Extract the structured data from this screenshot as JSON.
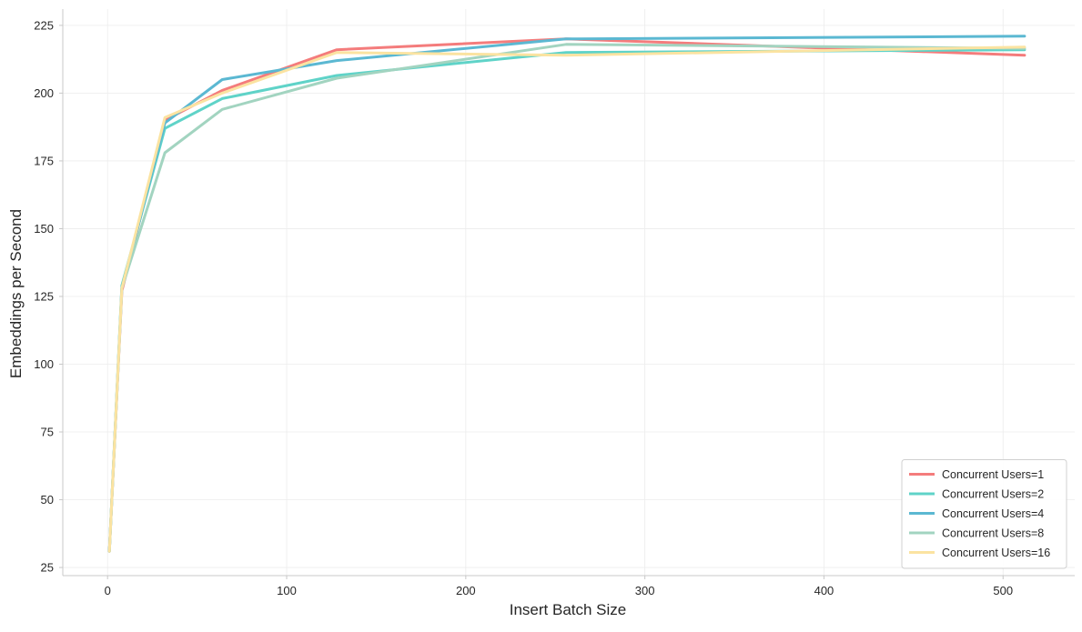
{
  "chart_data": {
    "type": "line",
    "title": "",
    "xlabel": "Insert Batch Size",
    "ylabel": "Embeddings per Second",
    "xlim": [
      -25,
      540
    ],
    "ylim": [
      22,
      231
    ],
    "xticks": [
      0,
      100,
      200,
      300,
      400,
      500
    ],
    "yticks": [
      25,
      50,
      75,
      100,
      125,
      150,
      175,
      200,
      225
    ],
    "grid": true,
    "legend_position": "lower-right",
    "x": [
      1,
      8,
      32,
      64,
      128,
      256,
      512
    ],
    "series": [
      {
        "name": "Concurrent Users=1",
        "color": "#f47c7c",
        "values": [
          31,
          127,
          190,
          201,
          216,
          220,
          214
        ]
      },
      {
        "name": "Concurrent Users=2",
        "color": "#5fd3c8",
        "values": [
          31,
          129,
          187,
          198,
          206.5,
          215,
          216
        ]
      },
      {
        "name": "Concurrent Users=4",
        "color": "#5bb8d2",
        "values": [
          31,
          128,
          189,
          205,
          212,
          220,
          221
        ]
      },
      {
        "name": "Concurrent Users=8",
        "color": "#a2d4c0",
        "values": [
          31,
          128,
          178,
          194,
          205.5,
          218,
          216.5
        ]
      },
      {
        "name": "Concurrent Users=16",
        "color": "#fbe3a1",
        "values": [
          31,
          128,
          191,
          200,
          215,
          214,
          217
        ]
      }
    ]
  }
}
